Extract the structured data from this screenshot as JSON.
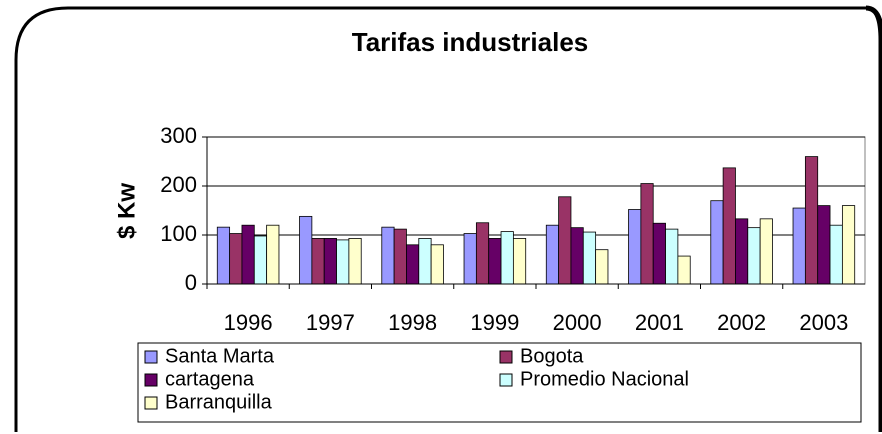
{
  "chart_data": {
    "type": "bar",
    "title": "Tarifas industriales",
    "y_label": "$ Kw",
    "categories": [
      "1996",
      "1997",
      "1998",
      "1999",
      "2000",
      "2001",
      "2002",
      "2003"
    ],
    "series": [
      {
        "name": "Santa Marta",
        "color": "#9999ff",
        "values": [
          116,
          138,
          116,
          103,
          120,
          152,
          170,
          155
        ]
      },
      {
        "name": "Bogota",
        "color": "#993366",
        "values": [
          103,
          93,
          112,
          125,
          178,
          205,
          237,
          260
        ]
      },
      {
        "name": "cartagena",
        "color": "#660066",
        "values": [
          120,
          93,
          80,
          93,
          115,
          124,
          133,
          160
        ]
      },
      {
        "name": "Promedio Nacional",
        "color": "#ccffff",
        "values": [
          98,
          90,
          93,
          107,
          106,
          112,
          115,
          120
        ]
      },
      {
        "name": "Barranquilla",
        "color": "#ffffcc",
        "values": [
          120,
          93,
          80,
          93,
          70,
          57,
          133,
          160
        ]
      }
    ],
    "ylim": [
      0,
      300
    ],
    "yticks": [
      0,
      100,
      200,
      300
    ],
    "grid": true
  }
}
